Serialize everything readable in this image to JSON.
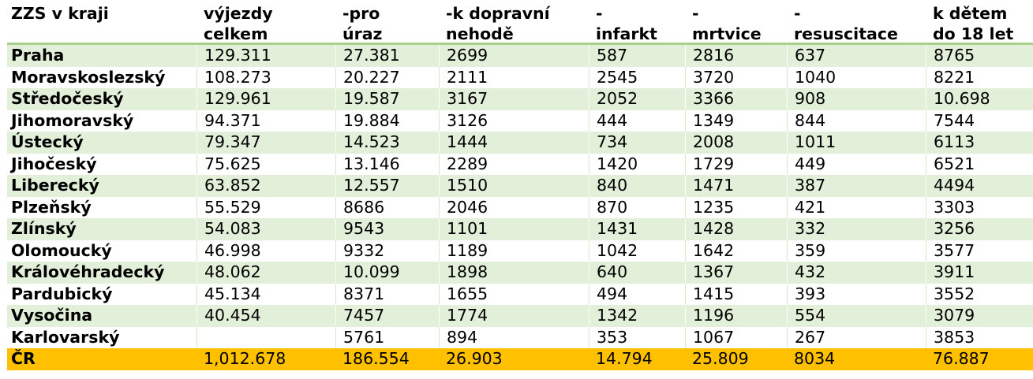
{
  "table": {
    "headers": [
      [
        "ZZS v kraji",
        ""
      ],
      [
        "výjezdy",
        "celkem"
      ],
      [
        "-pro",
        "úraz"
      ],
      [
        "-k dopravní",
        "nehodě"
      ],
      [
        "-",
        "infarkt"
      ],
      [
        "-",
        "mrtvice"
      ],
      [
        "-",
        "resuscitace"
      ],
      [
        "k dětem",
        "do 18 let"
      ]
    ],
    "rows": [
      [
        "Praha",
        "129.311",
        "27.381",
        "2699",
        "587",
        "2816",
        "637",
        "8765"
      ],
      [
        "Moravskoslezský",
        "108.273",
        "20.227",
        "2111",
        "2545",
        "3720",
        "1040",
        "8221"
      ],
      [
        "Středočeský",
        "129.961",
        "19.587",
        "3167",
        "2052",
        "3366",
        "908",
        "10.698"
      ],
      [
        "Jihomoravský",
        "94.371",
        "19.884",
        "3126",
        "444",
        "1349",
        "844",
        "7544"
      ],
      [
        "Ústecký",
        "79.347",
        "14.523",
        "1444",
        "734",
        "2008",
        "1011",
        "6113"
      ],
      [
        "Jihočeský",
        "75.625",
        "13.146",
        "2289",
        "1420",
        "1729",
        "449",
        "6521"
      ],
      [
        "Liberecký",
        "63.852",
        "12.557",
        "1510",
        "840",
        "1471",
        "387",
        "4494"
      ],
      [
        "Plzeňský",
        "55.529",
        "8686",
        "2046",
        "870",
        "1235",
        "421",
        "3303"
      ],
      [
        "Zlínský",
        "54.083",
        "9543",
        "1101",
        "1431",
        "1428",
        "332",
        "3256"
      ],
      [
        "Olomoucký",
        "46.998",
        "9332",
        "1189",
        "1042",
        "1642",
        "359",
        "3577"
      ],
      [
        "Královéhradecký",
        "48.062",
        "10.099",
        "1898",
        "640",
        "1367",
        "432",
        "3911"
      ],
      [
        "Pardubický",
        "45.134",
        "8371",
        "1655",
        "494",
        "1415",
        "393",
        "3552"
      ],
      [
        "Vysočina",
        "40.454",
        "7457",
        "1774",
        "1342",
        "1196",
        "554",
        "3079"
      ],
      [
        "Karlovarský",
        "",
        "5761",
        "894",
        "353",
        "1067",
        "267",
        "3853"
      ]
    ],
    "total": [
      "ČR",
      "1,012.678",
      "186.554",
      "26.903",
      "14.794",
      "25.809",
      "8034",
      "76.887"
    ]
  },
  "colors": {
    "alt_row": "#e2efd9",
    "header_rule": "#a8d08d",
    "total_row": "#ffc000"
  }
}
